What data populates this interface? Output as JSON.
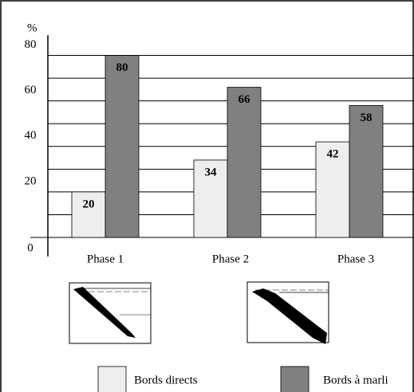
{
  "chart_data": {
    "type": "bar",
    "y_label": "%",
    "categories": [
      "Phase 1",
      "Phase 2",
      "Phase 3"
    ],
    "series": [
      {
        "name": "Bords directs",
        "color": "#eeeeee",
        "label_color": "#000000",
        "values": [
          20,
          34,
          42
        ]
      },
      {
        "name": "Bords à marli",
        "color": "#808080",
        "label_color": "#ffffff",
        "values": [
          80,
          66,
          58
        ]
      }
    ],
    "ylim": [
      0,
      90
    ],
    "yticks": [
      0,
      20,
      40,
      60,
      80
    ],
    "minor_gridlines": [
      10,
      30,
      50,
      70
    ],
    "grid": true,
    "legend": "bottom"
  }
}
